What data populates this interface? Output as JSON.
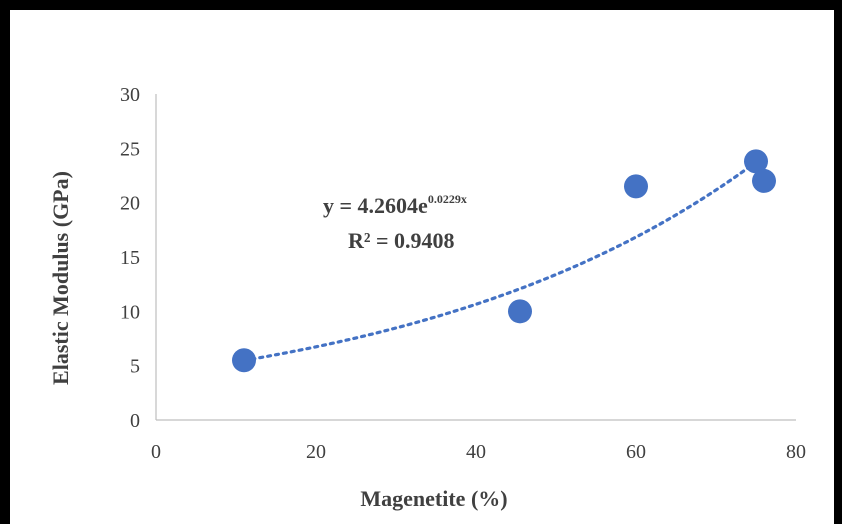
{
  "chart_data": {
    "type": "scatter",
    "title": "",
    "xlabel": "Magenetite  (%)",
    "ylabel": "Elastic Modulus  (GPa)",
    "xlim": [
      0,
      80
    ],
    "ylim": [
      0,
      30
    ],
    "x_ticks": [
      "0",
      "20",
      "40",
      "60",
      "80"
    ],
    "y_ticks": [
      "0",
      "5",
      "10",
      "15",
      "20",
      "25",
      "30"
    ],
    "grid": false,
    "series": [
      {
        "points": [
          {
            "x": 11,
            "y": 5.5
          },
          {
            "x": 45.5,
            "y": 10
          },
          {
            "x": 60,
            "y": 21.5
          },
          {
            "x": 75,
            "y": 23.8
          },
          {
            "x": 76,
            "y": 22
          }
        ],
        "color": "#4472c4"
      }
    ],
    "trendline": {
      "type": "exponential",
      "a": 4.2604,
      "b": 0.0229,
      "x_range": [
        11,
        76
      ],
      "equation_prefix": "y = 4.2604e",
      "equation_exponent": "0.0229x",
      "r_squared": "R² = 0.9408",
      "color": "#4472c4",
      "style": "dotted"
    }
  }
}
